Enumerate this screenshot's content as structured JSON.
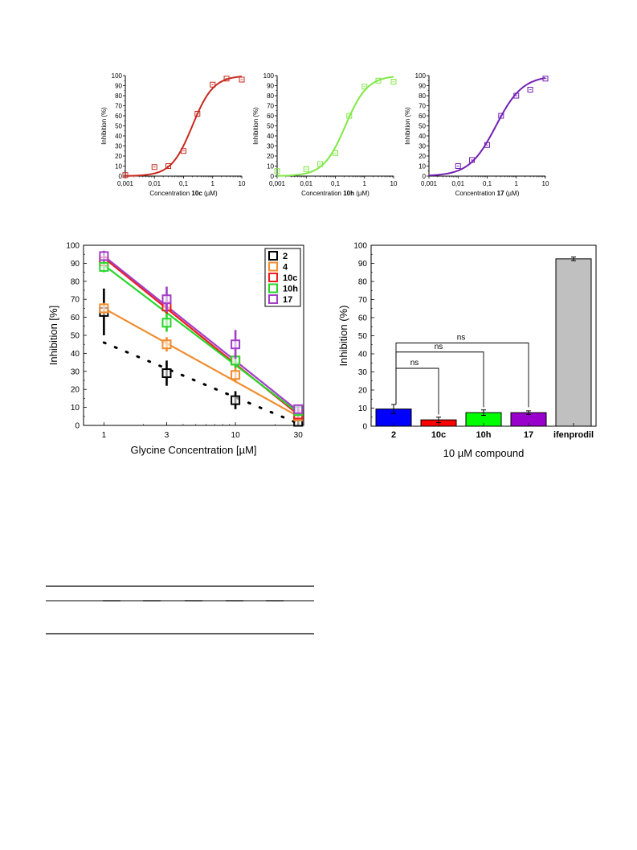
{
  "colors": {
    "c10c": "#c8291e",
    "c10h": "#7fe845",
    "c17": "#7220b3",
    "lg2": "#000000",
    "lg4": "#f28c2f",
    "lg10c": "#ee1c1c",
    "lg10h": "#28d62b",
    "lg17": "#a23ec8",
    "bar2": "#0000ff",
    "bar10c": "#ff0000",
    "bar10h": "#00ff00",
    "bar17": "#9900cc",
    "barIfen": "#c0c0c0"
  },
  "chart_data": [
    {
      "type": "scatter",
      "id": "10c",
      "xscale": "log",
      "xlim": [
        0.001,
        10
      ],
      "ylim": [
        0,
        100
      ],
      "xticks": [
        "0,001",
        "0,01",
        "0,1",
        "1",
        "10"
      ],
      "yticks": [
        "0",
        "10",
        "20",
        "30",
        "40",
        "50",
        "60",
        "70",
        "80",
        "90",
        "100"
      ],
      "ylabel": "Inhibition (%)",
      "xlabel_pre": "Concentration ",
      "xlabel_bold": "10c",
      "xlabel_post": " (µM)",
      "x": [
        0.001,
        0.01,
        0.03,
        0.1,
        0.3,
        1,
        3,
        10
      ],
      "y": [
        1,
        9,
        10,
        25,
        62,
        91,
        97,
        96
      ],
      "fit": {
        "ic50": 0.2,
        "hill": 1.2
      }
    },
    {
      "type": "scatter",
      "id": "10h",
      "xscale": "log",
      "xlim": [
        0.001,
        10
      ],
      "ylim": [
        0,
        100
      ],
      "xticks": [
        "0,001",
        "0,01",
        "0,1",
        "1",
        "10"
      ],
      "yticks": [
        "0",
        "10",
        "20",
        "30",
        "40",
        "50",
        "60",
        "70",
        "80",
        "90",
        "100"
      ],
      "ylabel": "Inhibition (%)",
      "xlabel_pre": "Concentration ",
      "xlabel_bold": "10h",
      "xlabel_post": " (µM)",
      "x": [
        0.001,
        0.01,
        0.03,
        0.1,
        0.3,
        1,
        3,
        10
      ],
      "y": [
        5,
        7,
        12,
        23,
        60,
        89,
        95,
        94
      ],
      "fit": {
        "ic50": 0.22,
        "hill": 1.15
      }
    },
    {
      "type": "scatter",
      "id": "17",
      "xscale": "log",
      "xlim": [
        0.001,
        10
      ],
      "ylim": [
        0,
        100
      ],
      "xticks": [
        "0,001",
        "0,01",
        "0,1",
        "1",
        "10"
      ],
      "yticks": [
        "0",
        "10",
        "20",
        "30",
        "40",
        "50",
        "60",
        "70",
        "80",
        "90",
        "100"
      ],
      "ylabel": "Inhibition (%)",
      "xlabel_pre": "Concentration ",
      "xlabel_bold": "17",
      "xlabel_post": " (µM)",
      "x": [
        0.01,
        0.03,
        0.1,
        0.3,
        1,
        3,
        10
      ],
      "y": [
        10,
        16,
        31,
        60,
        80,
        86,
        97
      ],
      "fit": {
        "ic50": 0.2,
        "hill": 0.95
      }
    },
    {
      "type": "line",
      "id": "glycine",
      "xscale": "log",
      "xlim": [
        0.7,
        33
      ],
      "ylim": [
        0,
        100
      ],
      "xticks": [
        1,
        3,
        10,
        30
      ],
      "xticklabels": [
        "1",
        "3",
        "10",
        "30"
      ],
      "yticks": [
        "0",
        "10",
        "20",
        "30",
        "40",
        "50",
        "60",
        "70",
        "80",
        "90",
        "100"
      ],
      "xlabel": "Glycine Concentration [µM]",
      "ylabel": "Inhibition [%]",
      "legend_position": "top-right",
      "series": [
        {
          "name": "2",
          "color_key": "lg2",
          "x": [
            1,
            3,
            10,
            30
          ],
          "y": [
            63,
            29,
            14,
            2
          ],
          "err": [
            13,
            7,
            5,
            2
          ],
          "fit": [
            46,
            0
          ],
          "dotted": true
        },
        {
          "name": "4",
          "color_key": "lg4",
          "x": [
            1,
            3,
            10,
            30
          ],
          "y": [
            65,
            45,
            28,
            5
          ],
          "err": [
            3,
            4,
            4,
            2
          ],
          "fit": [
            65,
            5
          ]
        },
        {
          "name": "10c",
          "color_key": "lg10c",
          "x": [
            1,
            3,
            10,
            30
          ],
          "y": [
            91,
            66,
            36,
            6
          ],
          "err": [
            3,
            4,
            4,
            2
          ],
          "fit": [
            93,
            6
          ]
        },
        {
          "name": "10h",
          "color_key": "lg10h",
          "x": [
            1,
            3,
            10,
            30
          ],
          "y": [
            88,
            57,
            36,
            8
          ],
          "err": [
            3,
            5,
            4,
            2
          ],
          "fit": [
            89,
            7
          ]
        },
        {
          "name": "17",
          "color_key": "lg17",
          "x": [
            1,
            3,
            10,
            30
          ],
          "y": [
            94,
            70,
            45,
            9
          ],
          "err": [
            3,
            7,
            8,
            2
          ],
          "fit": [
            94,
            8
          ]
        }
      ]
    },
    {
      "type": "bar",
      "id": "compound",
      "categories": [
        "2",
        "10c",
        "10h",
        "17",
        "ifenprodil"
      ],
      "values": [
        9.5,
        3.5,
        7.5,
        7.5,
        92.5
      ],
      "errors": [
        2.5,
        1.5,
        1.5,
        1,
        1
      ],
      "color_keys": [
        "bar2",
        "bar10c",
        "bar10h",
        "bar17",
        "barIfen"
      ],
      "ylim": [
        0,
        100
      ],
      "yticks": [
        "0",
        "10",
        "20",
        "30",
        "40",
        "50",
        "60",
        "70",
        "80",
        "90",
        "100"
      ],
      "xlabel": "10 µM compound",
      "ylabel": "Inhibition (%)",
      "annotations": [
        "ns",
        "ns",
        "ns"
      ]
    }
  ]
}
